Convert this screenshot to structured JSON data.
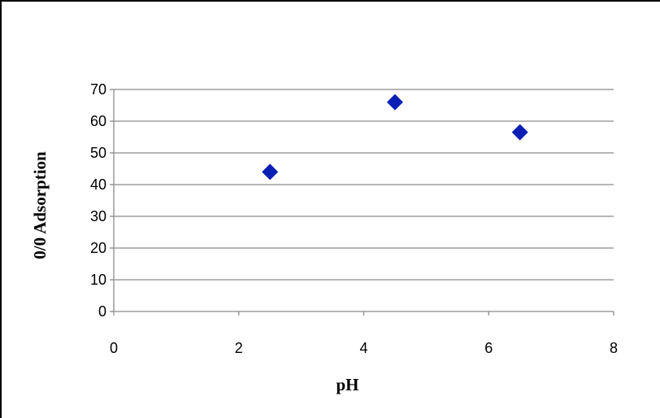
{
  "chart_data": {
    "type": "scatter",
    "title": "",
    "xlabel": "pH",
    "ylabel": "0/0 Adsorption",
    "xlim": [
      0,
      8
    ],
    "ylim": [
      0,
      70
    ],
    "x_ticks": [
      0,
      2,
      4,
      6,
      8
    ],
    "y_ticks": [
      0,
      10,
      20,
      30,
      40,
      50,
      60,
      70
    ],
    "grid": "horizontal",
    "legend": "none",
    "marker": "diamond",
    "marker_color": "#0a20b4",
    "points": [
      {
        "x": 2.5,
        "y": 44
      },
      {
        "x": 4.5,
        "y": 66
      },
      {
        "x": 6.5,
        "y": 56.5
      }
    ]
  }
}
